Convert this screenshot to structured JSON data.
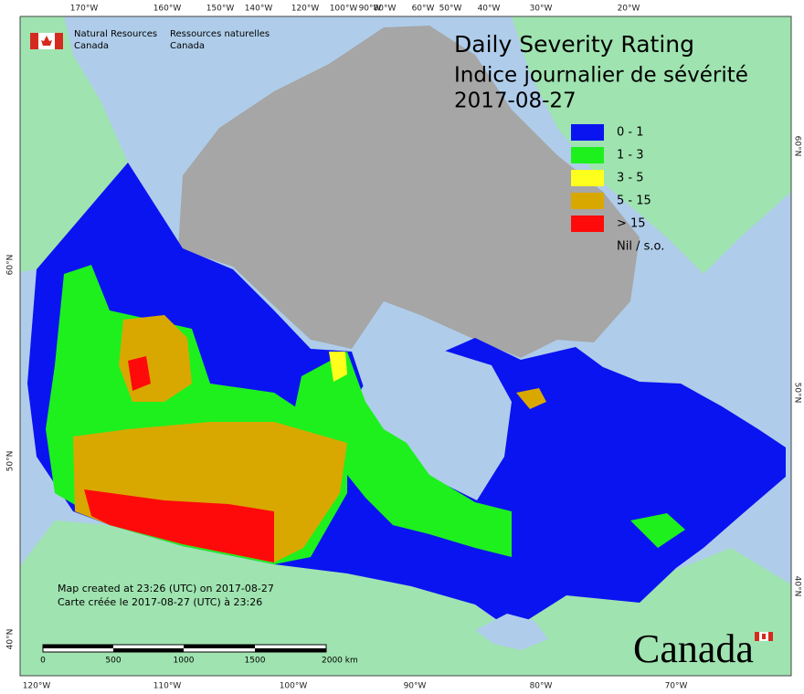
{
  "header": {
    "title": "Daily Severity Rating",
    "subtitle": "Indice journalier de sévérité",
    "date": "2017-08-27"
  },
  "agency": {
    "en_1": "Natural Resources",
    "en_2": "Canada",
    "fr_1": "Ressources naturelles",
    "fr_2": "Canada"
  },
  "legend": {
    "items": [
      {
        "label": "0 - 1",
        "color": "#0a14f0"
      },
      {
        "label": "1 - 3",
        "color": "#1ef01e"
      },
      {
        "label": "3 - 5",
        "color": "#ffff1e"
      },
      {
        "label": "5 - 15",
        "color": "#d9a800"
      },
      {
        "label": "> 15",
        "color": "#ff0a0a"
      },
      {
        "label": "Nil / s.o.",
        "color": "#a6a6a6"
      }
    ]
  },
  "top_axis": [
    "170°W",
    "160°W",
    "150°W",
    "140°W",
    "120°W",
    "100°W",
    "90°W",
    "80°W",
    "60°W",
    "50°W",
    "40°W",
    "30°W",
    "20°W"
  ],
  "bottom_axis": [
    "120°W",
    "110°W",
    "100°W",
    "90°W",
    "80°W",
    "70°W"
  ],
  "left_axis": [
    "60°N",
    "50°N",
    "40°N"
  ],
  "right_axis": [
    "60°N",
    "50°N",
    "40°N"
  ],
  "note": {
    "en": "Map created at 23:26 (UTC) on 2017-08-27",
    "fr": "Carte créée le 2017-08-27 (UTC) à 23:26"
  },
  "scale": {
    "labels": [
      "0",
      "500",
      "1000",
      "1500",
      "2000 km"
    ]
  },
  "wordmark": "Canada"
}
